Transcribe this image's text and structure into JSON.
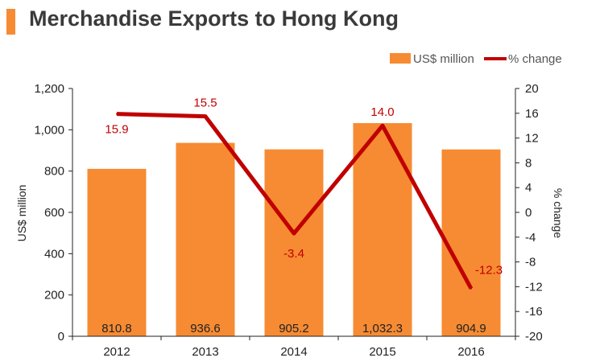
{
  "colors": {
    "bar": "#f68b33",
    "line": "#c00000",
    "title_accent": "#f68b33",
    "axis": "#222222"
  },
  "chart_data": {
    "type": "bar",
    "title": "Merchandise Exports to Hong Kong",
    "categories": [
      "2012",
      "2013",
      "2014",
      "2015",
      "2016"
    ],
    "series": [
      {
        "name": "US$ million",
        "type": "bar",
        "axis": "left",
        "values": [
          810.8,
          936.6,
          905.2,
          1032.3,
          904.9
        ],
        "labels": [
          "810.8",
          "936.6",
          "905.2",
          "1,032.3",
          "904.9"
        ]
      },
      {
        "name": "% change",
        "type": "line",
        "axis": "right",
        "values": [
          15.9,
          15.5,
          -3.4,
          14.0,
          -12.3
        ],
        "labels": [
          "15.9",
          "15.5",
          "-3.4",
          "14.0",
          "-12.3"
        ]
      }
    ],
    "ylabel": "US$ million",
    "ylim": [
      0,
      1200
    ],
    "y_ticks": [
      "0",
      "200",
      "400",
      "600",
      "800",
      "1,000",
      "1,200"
    ],
    "y2label": "% change",
    "y2lim": [
      -20,
      20
    ],
    "y2_ticks": [
      "-20",
      "-16",
      "-12",
      "-8",
      "-4",
      "0",
      "4",
      "8",
      "12",
      "16",
      "20"
    ],
    "legend": {
      "position": "top-right",
      "entries": [
        "US$ million",
        "% change"
      ]
    },
    "grid": false
  }
}
